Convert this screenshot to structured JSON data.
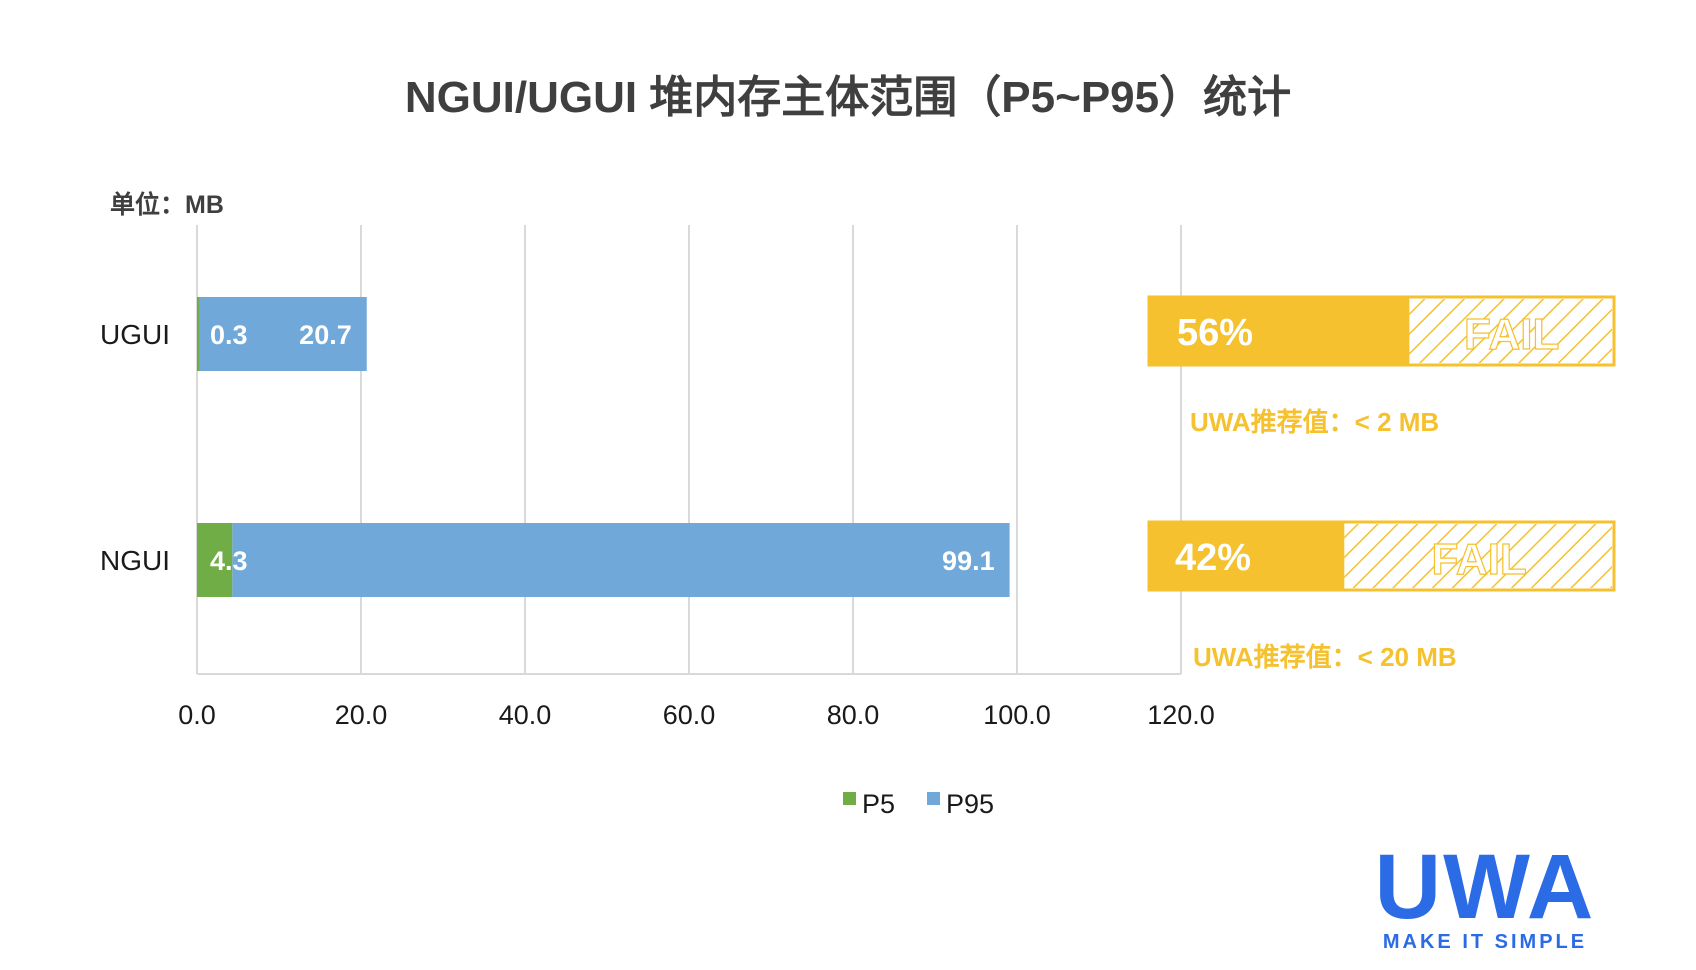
{
  "chart_data": {
    "type": "bar",
    "orientation": "horizontal",
    "title": "NGUI/UGUI 堆内存主体范围（P5~P95）统计",
    "unit_label": "单位：MB",
    "categories": [
      "UGUI",
      "NGUI"
    ],
    "series": [
      {
        "name": "P5",
        "values": [
          0.3,
          4.3
        ],
        "color": "#70ad47"
      },
      {
        "name": "P95",
        "values": [
          20.7,
          99.1
        ],
        "color": "#70a8da"
      }
    ],
    "xlim": [
      0,
      120
    ],
    "xticks": [
      "0.0",
      "20.0",
      "40.0",
      "60.0",
      "80.0",
      "100.0",
      "120.0"
    ],
    "grid": true,
    "legend": "bottom",
    "data_labels": {
      "P5": [
        "0.3",
        "4.3"
      ],
      "P95": [
        "20.7",
        "99.1"
      ]
    }
  },
  "annotations": [
    {
      "category": "UGUI",
      "pass_rate": 0.56,
      "rate_label": "56%",
      "status": "FAIL",
      "recommendation": "UWA推荐值：< 2 MB"
    },
    {
      "category": "NGUI",
      "pass_rate": 0.42,
      "rate_label": "42%",
      "status": "FAIL",
      "recommendation": "UWA推荐值：< 20 MB"
    }
  ],
  "colors": {
    "accent": "#f5c12e",
    "grid": "#d9d9d9",
    "brand": "#2b6be6"
  },
  "logo": {
    "wordmark": "UWA",
    "tagline": "MAKE IT SIMPLE"
  }
}
